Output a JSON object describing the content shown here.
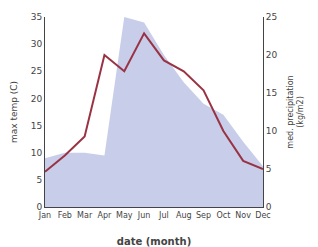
{
  "chart_data": {
    "type": "line",
    "categories": [
      "Jan",
      "Feb",
      "Mar",
      "Apr",
      "May",
      "Jun",
      "Jul",
      "Aug",
      "Sep",
      "Oct",
      "Nov",
      "Dec"
    ],
    "series": [
      {
        "type": "area",
        "color": "#c8ceea",
        "values": [
          9.0,
          10.0,
          10.0,
          9.5,
          35.0,
          34.0,
          28.0,
          23.0,
          19.0,
          17.0,
          12.0,
          7.5
        ]
      },
      {
        "type": "line",
        "color": "#993344",
        "values": [
          6.5,
          9.5,
          13.0,
          28.0,
          25.0,
          32.0,
          27.0,
          25.0,
          21.5,
          14.0,
          8.5,
          7.0
        ]
      }
    ],
    "xlabel": "date (month)",
    "ylabel": "max temp (C)",
    "y2label": "med. precipitation\n(kg/m2)",
    "ylim": [
      0,
      35
    ],
    "yticks": [
      0,
      5,
      10,
      15,
      20,
      25,
      30,
      35
    ],
    "y2lim": [
      0,
      25
    ],
    "y2ticks": [
      0,
      5,
      10,
      15,
      20,
      25
    ],
    "grid": false
  }
}
